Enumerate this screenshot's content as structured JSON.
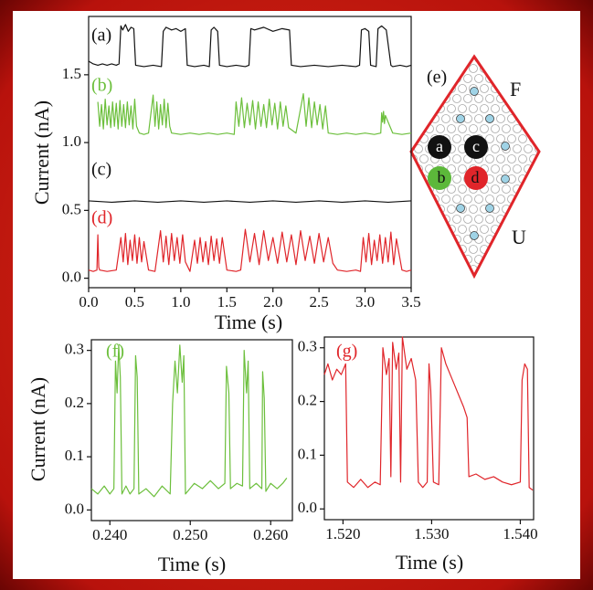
{
  "chart_data": [
    {
      "type": "line",
      "xlabel": "Time (s)",
      "ylabel": "Current (nA)",
      "xlim": [
        0,
        3.5
      ],
      "ylim": [
        -0.07,
        1.93
      ],
      "xticks": [
        {
          "value": 0,
          "label": "0.0"
        },
        0.5,
        {
          "value": 1,
          "label": "1.0"
        },
        1.5,
        {
          "value": 2,
          "label": "2.0"
        },
        2.5,
        {
          "value": 3,
          "label": "3.0"
        },
        3.5
      ],
      "yticks": [
        {
          "value": 0,
          "label": "0.0"
        },
        0.5,
        {
          "value": 1,
          "label": "1.0"
        },
        1.5
      ],
      "series": [
        {
          "name": "(a)",
          "color": "#111111",
          "x": [
            0,
            0.05,
            0.1,
            0.15,
            0.2,
            0.25,
            0.3,
            0.33,
            0.35,
            0.37,
            0.4,
            0.43,
            0.46,
            0.49,
            0.51,
            0.6,
            0.7,
            0.79,
            0.81,
            0.84,
            0.9,
            0.95,
            1.0,
            1.05,
            1.07,
            1.15,
            1.25,
            1.31,
            1.33,
            1.36,
            1.4,
            1.42,
            1.5,
            1.6,
            1.7,
            1.74,
            1.76,
            1.8,
            1.9,
            2.0,
            2.1,
            2.18,
            2.2,
            2.3,
            2.45,
            2.6,
            2.75,
            2.9,
            2.94,
            2.96,
            3.0,
            3.04,
            3.06,
            3.12,
            3.14,
            3.18,
            3.23,
            3.28,
            3.3,
            3.38,
            3.45,
            3.5
          ],
          "values": [
            1.6,
            1.58,
            1.57,
            1.58,
            1.57,
            1.58,
            1.57,
            1.58,
            1.86,
            1.83,
            1.87,
            1.82,
            1.85,
            1.84,
            1.57,
            1.56,
            1.57,
            1.56,
            1.82,
            1.85,
            1.83,
            1.84,
            1.82,
            1.84,
            1.57,
            1.56,
            1.57,
            1.56,
            1.83,
            1.85,
            1.82,
            1.57,
            1.56,
            1.57,
            1.56,
            1.57,
            1.84,
            1.83,
            1.85,
            1.82,
            1.84,
            1.83,
            1.57,
            1.56,
            1.57,
            1.56,
            1.57,
            1.56,
            1.57,
            1.83,
            1.84,
            1.82,
            1.57,
            1.56,
            1.84,
            1.86,
            1.83,
            1.57,
            1.56,
            1.57,
            1.56,
            1.57
          ]
        },
        {
          "name": "(b)",
          "color": "#6cbf3c",
          "x": [
            0.1,
            0.12,
            0.14,
            0.16,
            0.18,
            0.2,
            0.22,
            0.24,
            0.26,
            0.28,
            0.3,
            0.32,
            0.34,
            0.36,
            0.38,
            0.4,
            0.42,
            0.44,
            0.46,
            0.48,
            0.5,
            0.52,
            0.55,
            0.6,
            0.65,
            0.7,
            0.72,
            0.74,
            0.76,
            0.78,
            0.8,
            0.82,
            0.84,
            0.86,
            0.88,
            0.9,
            1.0,
            1.1,
            1.2,
            1.3,
            1.4,
            1.5,
            1.58,
            1.6,
            1.63,
            1.66,
            1.69,
            1.72,
            1.75,
            1.78,
            1.81,
            1.84,
            1.87,
            1.9,
            1.93,
            1.96,
            1.99,
            2.02,
            2.05,
            2.08,
            2.11,
            2.14,
            2.17,
            2.25,
            2.33,
            2.36,
            2.39,
            2.42,
            2.45,
            2.48,
            2.51,
            2.54,
            2.57,
            2.6,
            2.7,
            2.8,
            2.9,
            3.0,
            3.1,
            3.17,
            3.18,
            3.19,
            3.2,
            3.21,
            3.22,
            3.3,
            3.4,
            3.5
          ],
          "values": [
            1.3,
            1.12,
            1.28,
            1.1,
            1.32,
            1.13,
            1.27,
            1.11,
            1.3,
            1.12,
            1.29,
            1.1,
            1.31,
            1.12,
            1.28,
            1.11,
            1.3,
            1.13,
            1.27,
            1.1,
            1.32,
            1.12,
            1.07,
            1.06,
            1.07,
            1.35,
            1.12,
            1.3,
            1.1,
            1.28,
            1.13,
            1.32,
            1.11,
            1.29,
            1.12,
            1.07,
            1.06,
            1.07,
            1.06,
            1.07,
            1.06,
            1.07,
            1.06,
            1.3,
            1.12,
            1.33,
            1.11,
            1.29,
            1.13,
            1.31,
            1.1,
            1.3,
            1.12,
            1.28,
            1.11,
            1.32,
            1.13,
            1.29,
            1.1,
            1.3,
            1.12,
            1.27,
            1.11,
            1.07,
            1.36,
            1.12,
            1.33,
            1.11,
            1.3,
            1.13,
            1.28,
            1.1,
            1.27,
            1.07,
            1.06,
            1.07,
            1.06,
            1.07,
            1.06,
            1.07,
            1.22,
            1.15,
            1.23,
            1.14,
            1.2,
            1.07,
            1.06,
            1.07
          ]
        },
        {
          "name": "(c)",
          "color": "#111111",
          "x": [
            0,
            0.25,
            0.5,
            0.75,
            1.0,
            1.25,
            1.5,
            1.75,
            2.0,
            2.25,
            2.5,
            2.75,
            3.0,
            3.25,
            3.5
          ],
          "values": [
            0.57,
            0.56,
            0.57,
            0.56,
            0.57,
            0.56,
            0.57,
            0.56,
            0.57,
            0.56,
            0.57,
            0.56,
            0.57,
            0.56,
            0.57
          ]
        },
        {
          "name": "(d)",
          "color": "#e0252a",
          "x": [
            0,
            0.05,
            0.09,
            0.1,
            0.11,
            0.12,
            0.2,
            0.3,
            0.35,
            0.375,
            0.4,
            0.425,
            0.45,
            0.475,
            0.5,
            0.525,
            0.55,
            0.575,
            0.6,
            0.65,
            0.72,
            0.78,
            0.81,
            0.84,
            0.87,
            0.9,
            0.93,
            0.96,
            0.99,
            1.02,
            1.05,
            1.1,
            1.15,
            1.18,
            1.21,
            1.24,
            1.27,
            1.3,
            1.33,
            1.36,
            1.39,
            1.42,
            1.45,
            1.5,
            1.6,
            1.65,
            1.7,
            1.75,
            1.8,
            1.85,
            1.9,
            1.95,
            2.0,
            2.05,
            2.1,
            2.15,
            2.2,
            2.25,
            2.3,
            2.35,
            2.4,
            2.45,
            2.5,
            2.55,
            2.6,
            2.65,
            2.7,
            2.8,
            2.9,
            2.95,
            2.98,
            3.01,
            3.04,
            3.07,
            3.1,
            3.13,
            3.16,
            3.19,
            3.22,
            3.25,
            3.28,
            3.31,
            3.34,
            3.4,
            3.45,
            3.5
          ],
          "values": [
            0.06,
            0.05,
            0.06,
            0.32,
            0.08,
            0.06,
            0.05,
            0.06,
            0.3,
            0.12,
            0.33,
            0.1,
            0.28,
            0.13,
            0.32,
            0.11,
            0.3,
            0.12,
            0.27,
            0.06,
            0.05,
            0.35,
            0.12,
            0.31,
            0.1,
            0.33,
            0.13,
            0.3,
            0.11,
            0.32,
            0.12,
            0.05,
            0.28,
            0.11,
            0.3,
            0.12,
            0.27,
            0.1,
            0.31,
            0.13,
            0.29,
            0.11,
            0.3,
            0.06,
            0.05,
            0.06,
            0.36,
            0.12,
            0.33,
            0.1,
            0.35,
            0.13,
            0.3,
            0.11,
            0.34,
            0.12,
            0.32,
            0.1,
            0.35,
            0.13,
            0.31,
            0.11,
            0.33,
            0.12,
            0.3,
            0.11,
            0.06,
            0.05,
            0.06,
            0.05,
            0.3,
            0.12,
            0.33,
            0.1,
            0.28,
            0.13,
            0.32,
            0.11,
            0.3,
            0.12,
            0.34,
            0.1,
            0.29,
            0.06,
            0.05,
            0.06
          ]
        }
      ]
    },
    {
      "type": "line",
      "xlabel": "Time (s)",
      "ylabel": "Current (nA)",
      "xlim": [
        0.2377,
        0.2627
      ],
      "ylim": [
        -0.02,
        0.32
      ],
      "xticks": [
        {
          "value": 0.24,
          "label": "0.240"
        },
        {
          "value": 0.25,
          "label": "0.250"
        },
        {
          "value": 0.26,
          "label": "0.260"
        }
      ],
      "yticks": [
        {
          "value": 0,
          "label": "0.0"
        },
        0.1,
        0.2,
        0.3
      ],
      "series": [
        {
          "name": "(f)",
          "color": "#6cbf3c",
          "x": [
            0.2377,
            0.2385,
            0.2393,
            0.24,
            0.2405,
            0.2407,
            0.2409,
            0.2411,
            0.2413,
            0.2415,
            0.242,
            0.2425,
            0.243,
            0.2432,
            0.2434,
            0.2436,
            0.2445,
            0.2455,
            0.2465,
            0.2475,
            0.2478,
            0.2481,
            0.2484,
            0.2487,
            0.249,
            0.2492,
            0.2494,
            0.2505,
            0.2515,
            0.2525,
            0.2535,
            0.2543,
            0.2545,
            0.2548,
            0.255,
            0.2558,
            0.2565,
            0.2567,
            0.257,
            0.2572,
            0.2574,
            0.2582,
            0.2589,
            0.259,
            0.2592,
            0.2594,
            0.26,
            0.2608,
            0.2615,
            0.262
          ],
          "values": [
            0.04,
            0.03,
            0.045,
            0.03,
            0.04,
            0.28,
            0.22,
            0.31,
            0.25,
            0.03,
            0.045,
            0.03,
            0.04,
            0.29,
            0.25,
            0.03,
            0.04,
            0.025,
            0.045,
            0.03,
            0.2,
            0.28,
            0.22,
            0.31,
            0.24,
            0.29,
            0.03,
            0.05,
            0.04,
            0.055,
            0.04,
            0.05,
            0.27,
            0.22,
            0.04,
            0.05,
            0.045,
            0.3,
            0.22,
            0.28,
            0.04,
            0.05,
            0.04,
            0.26,
            0.21,
            0.035,
            0.05,
            0.04,
            0.05,
            0.06
          ]
        }
      ]
    },
    {
      "type": "line",
      "xlabel": "Time (s)",
      "xlim": [
        1.5179,
        1.5415
      ],
      "ylim": [
        -0.02,
        0.32
      ],
      "xticks": [
        {
          "value": 1.52,
          "label": "1.520"
        },
        {
          "value": 1.53,
          "label": "1.530"
        },
        {
          "value": 1.54,
          "label": "1.540"
        }
      ],
      "yticks": [
        {
          "value": 0,
          "label": "0.0"
        },
        0.1,
        0.2,
        0.3
      ],
      "series": [
        {
          "name": "(g)",
          "color": "#e0252a",
          "x": [
            1.5179,
            1.5183,
            1.5188,
            1.5193,
            1.5198,
            1.5203,
            1.5205,
            1.5212,
            1.522,
            1.5228,
            1.5236,
            1.5242,
            1.5245,
            1.5249,
            1.5252,
            1.5254,
            1.5256,
            1.526,
            1.5263,
            1.5265,
            1.5267,
            1.5272,
            1.5277,
            1.5282,
            1.5285,
            1.529,
            1.5295,
            1.5297,
            1.5299,
            1.5302,
            1.5308,
            1.5311,
            1.5316,
            1.5321,
            1.5326,
            1.5331,
            1.5336,
            1.534,
            1.5342,
            1.535,
            1.536,
            1.537,
            1.538,
            1.539,
            1.54,
            1.5402,
            1.5405,
            1.5408,
            1.541,
            1.5414
          ],
          "values": [
            0.25,
            0.27,
            0.24,
            0.26,
            0.25,
            0.27,
            0.05,
            0.04,
            0.055,
            0.04,
            0.05,
            0.045,
            0.3,
            0.25,
            0.28,
            0.06,
            0.31,
            0.26,
            0.29,
            0.05,
            0.32,
            0.26,
            0.28,
            0.24,
            0.05,
            0.04,
            0.05,
            0.27,
            0.22,
            0.05,
            0.045,
            0.3,
            0.27,
            0.25,
            0.23,
            0.21,
            0.19,
            0.17,
            0.06,
            0.065,
            0.055,
            0.06,
            0.05,
            0.045,
            0.05,
            0.24,
            0.27,
            0.26,
            0.04,
            0.035
          ]
        }
      ]
    }
  ],
  "diagram": {
    "label": "(e)",
    "top_label": "F",
    "bottom_label": "U",
    "sites": [
      "a",
      "c",
      "b",
      "d"
    ]
  }
}
